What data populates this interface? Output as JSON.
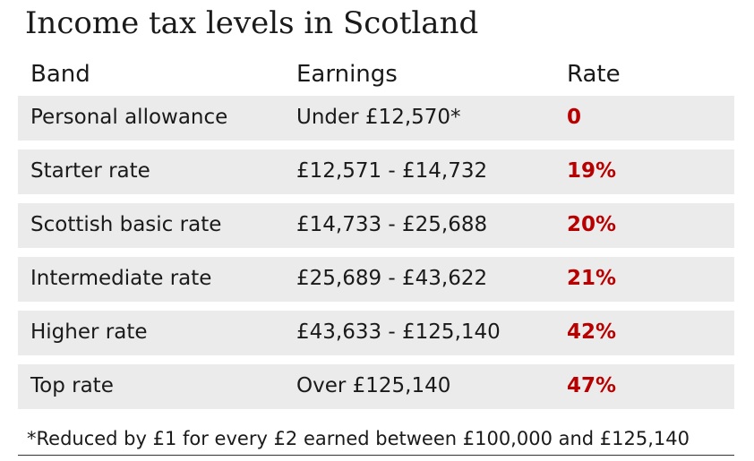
{
  "title": "Income tax levels in Scotland",
  "header": {
    "band": "Band",
    "earnings": "Earnings",
    "rate": "Rate"
  },
  "rows": [
    {
      "band": "Personal allowance",
      "earnings": "Under £12,570*",
      "rate": "0"
    },
    {
      "band": "Starter rate",
      "earnings": "£12,571 - £14,732",
      "rate": "19%"
    },
    {
      "band": "Scottish basic rate",
      "earnings": "£14,733 - £25,688",
      "rate": "20%"
    },
    {
      "band": "Intermediate rate",
      "earnings": "£25,689 - £43,622",
      "rate": "21%"
    },
    {
      "band": "Higher rate",
      "earnings": "£43,633 - £125,140",
      "rate": "42%"
    },
    {
      "band": "Top rate",
      "earnings": "Over £125,140",
      "rate": "47%"
    }
  ],
  "footnote": "*Reduced by £1 for every £2 earned between £100,000 and £125,140",
  "colors": {
    "rate_text": "#b80000",
    "row_bg": "#ebebeb"
  }
}
